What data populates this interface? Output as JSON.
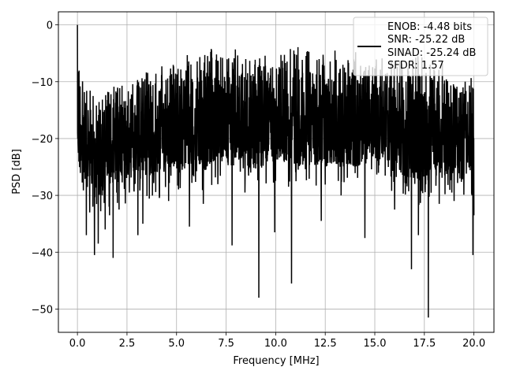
{
  "chart_data": {
    "type": "line",
    "title": "",
    "xlabel": "Frequency [MHz]",
    "ylabel": "PSD [dB]",
    "xlim": [
      -0.96,
      21.01
    ],
    "ylim": [
      -54.1,
      2.3
    ],
    "xticks": [
      0.0,
      2.5,
      5.0,
      7.5,
      10.0,
      12.5,
      15.0,
      17.5,
      20.0
    ],
    "xtick_labels": [
      "0.0",
      "2.5",
      "5.0",
      "7.5",
      "10.0",
      "12.5",
      "15.0",
      "17.5",
      "20.0"
    ],
    "yticks": [
      0,
      -10,
      -20,
      -30,
      -40,
      -50
    ],
    "ytick_labels": [
      "0",
      "−10",
      "−20",
      "−30",
      "−40",
      "−50"
    ],
    "grid": true,
    "legend_placement": "top-right",
    "legend_lines": [
      "ENOB: -4.48 bits",
      "SNR: -25.22 dB",
      "SINAD: -25.24 dB",
      "SFDR: 1.57"
    ],
    "series": [
      {
        "color": "#000000",
        "x_range": [
          0.0,
          20.0
        ],
        "upper_envelope": [
          [
            0.0,
            0.0
          ],
          [
            0.3,
            -11
          ],
          [
            0.7,
            -11
          ],
          [
            1.0,
            -11
          ],
          [
            1.5,
            -11
          ],
          [
            2.0,
            -10
          ],
          [
            2.5,
            -9
          ],
          [
            3.0,
            -9
          ],
          [
            3.5,
            -7
          ],
          [
            4.0,
            -8
          ],
          [
            4.5,
            -6
          ],
          [
            5.0,
            -7
          ],
          [
            5.5,
            -5
          ],
          [
            6.0,
            -6
          ],
          [
            6.5,
            -4
          ],
          [
            7.0,
            -4
          ],
          [
            7.5,
            -5
          ],
          [
            8.0,
            -4
          ],
          [
            8.5,
            -6
          ],
          [
            9.0,
            -5
          ],
          [
            9.5,
            -5
          ],
          [
            10.0,
            -4
          ],
          [
            10.5,
            -3
          ],
          [
            11.0,
            -3
          ],
          [
            11.5,
            -4
          ],
          [
            12.0,
            -5
          ],
          [
            12.5,
            -5
          ],
          [
            13.0,
            -4
          ],
          [
            13.5,
            -5
          ],
          [
            14.0,
            -3
          ],
          [
            14.5,
            -6
          ],
          [
            15.0,
            -5
          ],
          [
            15.5,
            -6
          ],
          [
            16.0,
            -6
          ],
          [
            16.5,
            -6
          ],
          [
            17.0,
            -5
          ],
          [
            17.5,
            -5
          ],
          [
            18.0,
            -6
          ],
          [
            18.5,
            -6
          ],
          [
            19.0,
            -9
          ],
          [
            19.5,
            -8
          ],
          [
            20.0,
            -9
          ]
        ],
        "typical_floor": [
          [
            0.0,
            -26
          ],
          [
            1.0,
            -29
          ],
          [
            2.0,
            -28
          ],
          [
            3.0,
            -27
          ],
          [
            4.0,
            -27
          ],
          [
            5.0,
            -25
          ],
          [
            6.0,
            -27
          ],
          [
            7.0,
            -24
          ],
          [
            8.0,
            -25
          ],
          [
            9.0,
            -26
          ],
          [
            10.0,
            -24
          ],
          [
            11.0,
            -25
          ],
          [
            12.0,
            -25
          ],
          [
            13.0,
            -25
          ],
          [
            14.0,
            -25
          ],
          [
            15.0,
            -24
          ],
          [
            16.0,
            -26
          ],
          [
            17.0,
            -28
          ],
          [
            18.0,
            -27
          ],
          [
            19.0,
            -26
          ],
          [
            20.0,
            -26
          ]
        ],
        "deep_nulls": [
          [
            0.45,
            -37.0
          ],
          [
            0.62,
            -33.0
          ],
          [
            0.78,
            -32.0
          ],
          [
            0.86,
            -40.5
          ],
          [
            1.05,
            -38.5
          ],
          [
            1.25,
            -30.0
          ],
          [
            1.4,
            -36.0
          ],
          [
            1.62,
            -33.5
          ],
          [
            1.8,
            -41.0
          ],
          [
            2.1,
            -32.5
          ],
          [
            2.62,
            -29.5
          ],
          [
            3.05,
            -37.0
          ],
          [
            3.3,
            -35.0
          ],
          [
            4.6,
            -31.0
          ],
          [
            5.65,
            -35.5
          ],
          [
            6.35,
            -31.5
          ],
          [
            7.8,
            -38.8
          ],
          [
            8.45,
            -29.5
          ],
          [
            9.15,
            -48.0
          ],
          [
            9.95,
            -36.5
          ],
          [
            10.8,
            -45.5
          ],
          [
            12.3,
            -34.5
          ],
          [
            13.3,
            -30.0
          ],
          [
            14.5,
            -37.5
          ],
          [
            16.0,
            -32.5
          ],
          [
            16.85,
            -43.0
          ],
          [
            17.2,
            -37.0
          ],
          [
            17.7,
            -51.5
          ],
          [
            18.25,
            -31.5
          ],
          [
            19.0,
            -31.0
          ],
          [
            19.95,
            -40.5
          ],
          [
            20.0,
            -33.5
          ]
        ]
      }
    ]
  }
}
